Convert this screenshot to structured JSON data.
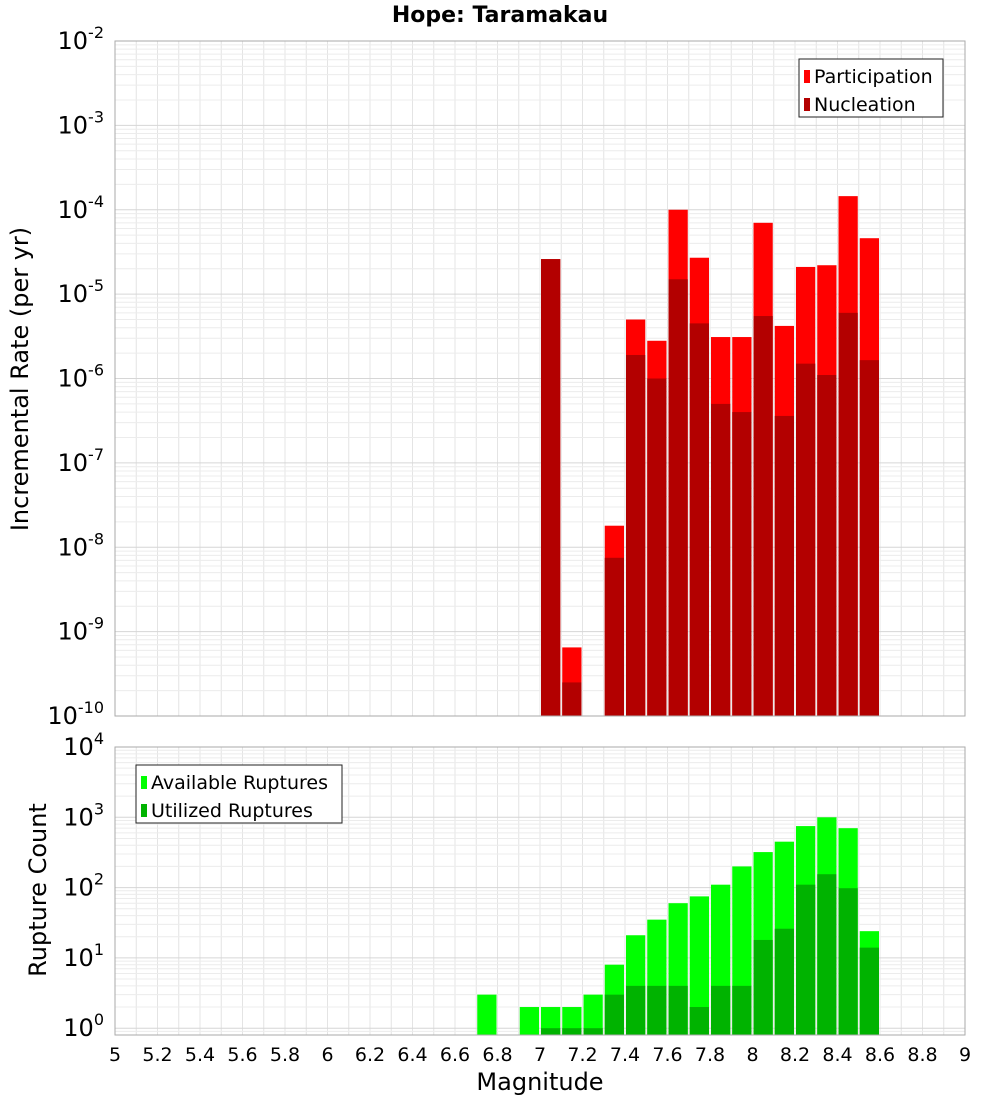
{
  "chart_data": [
    {
      "type": "bar",
      "title": "Hope: Taramakau",
      "xlabel": "",
      "ylabel": "Incremental Rate (per yr)",
      "yscale": "log",
      "ylim": [
        1e-10,
        0.01
      ],
      "xlim": [
        5,
        9
      ],
      "bin_width": 0.1,
      "grid": true,
      "legend_position": "top-right",
      "y_ticks": [
        {
          "base": "10",
          "exp": "-10"
        },
        {
          "base": "10",
          "exp": "-9"
        },
        {
          "base": "10",
          "exp": "-8"
        },
        {
          "base": "10",
          "exp": "-7"
        },
        {
          "base": "10",
          "exp": "-6"
        },
        {
          "base": "10",
          "exp": "-5"
        },
        {
          "base": "10",
          "exp": "-4"
        },
        {
          "base": "10",
          "exp": "-3"
        },
        {
          "base": "10",
          "exp": "-2"
        }
      ],
      "x": [
        7.05,
        7.15,
        7.35,
        7.45,
        7.55,
        7.65,
        7.75,
        7.85,
        7.95,
        8.05,
        8.15,
        8.25,
        8.35,
        8.45,
        8.55
      ],
      "series": [
        {
          "name": "Participation",
          "color": "#ff0000",
          "values": [
            2.6e-05,
            6.5e-10,
            1.8e-08,
            5e-06,
            2.8e-06,
            0.0001,
            2.7e-05,
            3.1e-06,
            3.1e-06,
            7e-05,
            4.2e-06,
            2.1e-05,
            2.2e-05,
            0.000145,
            4.6e-05
          ]
        },
        {
          "name": "Nucleation",
          "color": "#b30000",
          "values": [
            2.6e-05,
            2.5e-10,
            7.5e-09,
            1.9e-06,
            1e-06,
            1.5e-05,
            4.5e-06,
            5e-07,
            4e-07,
            5.5e-06,
            3.6e-07,
            1.5e-06,
            1.1e-06,
            6e-06,
            1.65e-06
          ]
        }
      ]
    },
    {
      "type": "bar",
      "title": "",
      "xlabel": "Magnitude",
      "ylabel": "Rupture Count",
      "yscale": "log",
      "ylim": [
        0.8,
        10000
      ],
      "xlim": [
        5,
        9
      ],
      "bin_width": 0.1,
      "grid": true,
      "legend_position": "top-left",
      "x_ticks": [
        "5",
        "5.2",
        "5.4",
        "5.6",
        "5.8",
        "6",
        "6.2",
        "6.4",
        "6.6",
        "6.8",
        "7",
        "7.2",
        "7.4",
        "7.6",
        "7.8",
        "8",
        "8.2",
        "8.4",
        "8.6",
        "8.8",
        "9"
      ],
      "y_ticks": [
        {
          "base": "10",
          "exp": "0"
        },
        {
          "base": "10",
          "exp": "1"
        },
        {
          "base": "10",
          "exp": "2"
        },
        {
          "base": "10",
          "exp": "3"
        },
        {
          "base": "10",
          "exp": "4"
        }
      ],
      "x": [
        6.75,
        6.95,
        7.05,
        7.15,
        7.25,
        7.35,
        7.45,
        7.55,
        7.65,
        7.75,
        7.85,
        7.95,
        8.05,
        8.15,
        8.25,
        8.35,
        8.45,
        8.55
      ],
      "series": [
        {
          "name": "Available Ruptures",
          "color": "#00ff00",
          "values": [
            3,
            2,
            2,
            2,
            3,
            8,
            21,
            35,
            60,
            75,
            110,
            200,
            320,
            450,
            750,
            1000,
            700,
            24
          ]
        },
        {
          "name": "Utilized Ruptures",
          "color": "#00b300",
          "values": [
            0,
            0,
            1,
            1,
            1,
            3,
            4,
            4,
            4,
            2,
            4,
            4,
            18,
            26,
            110,
            155,
            98,
            14
          ]
        }
      ]
    }
  ]
}
